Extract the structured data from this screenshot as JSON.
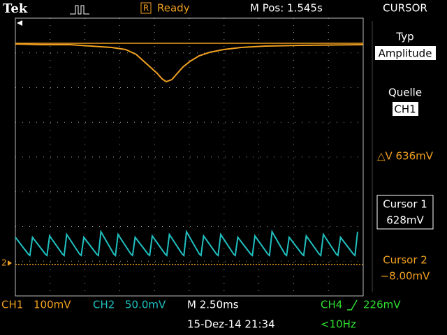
{
  "header": {
    "brand": "Tek",
    "status_icon": "R",
    "status": "Ready",
    "position": "M Pos: 1.545s",
    "menu": "CURSOR"
  },
  "side_menu": {
    "type_label": "Typ",
    "type_value": "Amplitude",
    "source_label": "Quelle",
    "source_value": "CH1",
    "delta": "△V 636mV",
    "cursor1_label": "Cursor 1",
    "cursor1_value": "628mV",
    "cursor2_label": "Cursor 2",
    "cursor2_value": "−8.00mV"
  },
  "footer": {
    "ch1": "CH1",
    "ch1_scale": "100mV",
    "ch2": "CH2",
    "ch2_scale": "50.0mV",
    "timebase": "M 2.50ms",
    "trigger_source": "CH4",
    "trigger_level": "226mV",
    "date": "15-Dez-14 21:34",
    "frequency": "<10Hz"
  },
  "markers": {
    "ch2": "2"
  }
}
